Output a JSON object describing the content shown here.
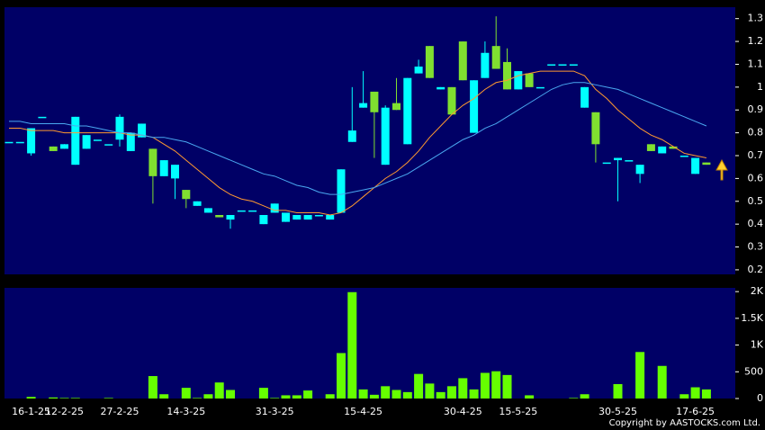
{
  "chart_data": [
    {
      "type": "candlestick",
      "categories": [
        null,
        null,
        "16-1-25",
        null,
        null,
        "12-2-25",
        null,
        null,
        null,
        null,
        "27-2-25",
        null,
        null,
        null,
        null,
        null,
        "14-3-25",
        null,
        null,
        null,
        null,
        null,
        null,
        null,
        "31-3-25",
        null,
        null,
        null,
        null,
        null,
        null,
        null,
        "15-4-25",
        null,
        null,
        null,
        null,
        null,
        null,
        null,
        null,
        "30-4-25",
        null,
        null,
        null,
        null,
        "15-5-25",
        null,
        null,
        null,
        null,
        null,
        null,
        null,
        null,
        "30-5-25",
        null,
        null,
        null,
        null,
        null,
        null,
        "17-6-25",
        null
      ],
      "open": [
        0.76,
        0.76,
        0.82,
        0.87,
        0.72,
        0.75,
        0.87,
        0.79,
        0.77,
        0.75,
        0.87,
        0.8,
        0.84,
        0.61,
        0.68,
        0.66,
        0.51,
        0.5,
        0.47,
        0.43,
        0.44,
        0.46,
        0.46,
        0.44,
        0.49,
        0.45,
        0.44,
        0.44,
        0.44,
        0.44,
        0.64,
        0.81,
        0.93,
        0.89,
        0.91,
        0.9,
        1.04,
        1.09,
        1.04,
        1.0,
        0.88,
        1.03,
        1.03,
        1.15,
        1.08,
        0.99,
        1.07,
        1.0,
        1.0,
        1.1,
        1.1,
        1.1,
        1.0,
        0.75,
        0.67,
        0.69,
        0.68,
        0.66,
        0.72,
        0.74,
        0.73,
        0.7,
        0.69,
        0.66
      ],
      "high": [
        0.76,
        0.76,
        0.82,
        0.87,
        0.74,
        0.75,
        0.87,
        0.79,
        0.77,
        0.75,
        0.88,
        0.8,
        0.84,
        0.73,
        0.68,
        0.66,
        0.55,
        0.5,
        0.47,
        0.44,
        0.44,
        0.46,
        0.46,
        0.44,
        0.49,
        0.45,
        0.44,
        0.44,
        0.44,
        0.44,
        0.64,
        1.0,
        1.07,
        0.98,
        0.92,
        1.04,
        1.04,
        1.12,
        1.18,
        1.0,
        1.0,
        1.2,
        1.03,
        1.2,
        1.31,
        1.17,
        1.07,
        1.06,
        1.0,
        1.1,
        1.1,
        1.1,
        1.0,
        0.89,
        0.67,
        0.69,
        0.68,
        0.66,
        0.75,
        0.74,
        0.74,
        0.7,
        0.69,
        0.67
      ],
      "low": [
        0.76,
        0.76,
        0.7,
        0.87,
        0.72,
        0.73,
        0.66,
        0.73,
        0.77,
        0.75,
        0.74,
        0.72,
        0.78,
        0.49,
        0.61,
        0.51,
        0.47,
        0.48,
        0.45,
        0.43,
        0.38,
        0.46,
        0.46,
        0.4,
        0.45,
        0.41,
        0.42,
        0.42,
        0.44,
        0.42,
        0.45,
        0.76,
        0.91,
        0.69,
        0.66,
        0.9,
        0.75,
        1.06,
        1.04,
        0.99,
        0.88,
        1.03,
        0.8,
        1.04,
        1.08,
        0.99,
        0.99,
        1.0,
        1.0,
        1.1,
        1.1,
        1.1,
        0.91,
        0.67,
        0.67,
        0.5,
        0.68,
        0.58,
        0.72,
        0.71,
        0.73,
        0.7,
        0.62,
        0.66
      ],
      "close": [
        0.76,
        0.76,
        0.71,
        0.87,
        0.74,
        0.73,
        0.66,
        0.73,
        0.77,
        0.75,
        0.77,
        0.72,
        0.78,
        0.73,
        0.61,
        0.6,
        0.55,
        0.48,
        0.45,
        0.44,
        0.42,
        0.46,
        0.46,
        0.4,
        0.45,
        0.41,
        0.42,
        0.42,
        0.44,
        0.42,
        0.45,
        0.76,
        0.91,
        0.98,
        0.66,
        0.93,
        0.75,
        1.06,
        1.18,
        0.99,
        1.0,
        1.2,
        0.8,
        1.04,
        1.18,
        1.11,
        0.99,
        1.06,
        1.0,
        1.1,
        1.1,
        1.1,
        0.91,
        0.89,
        0.67,
        0.68,
        0.68,
        0.62,
        0.75,
        0.71,
        0.74,
        0.7,
        0.62,
        0.67
      ],
      "up_color": "#80e030",
      "down_color": "#00ffff",
      "series": [
        {
          "color": "#ff9a30",
          "values": [
            0.82,
            0.82,
            0.81,
            0.81,
            0.81,
            0.8,
            0.8,
            0.8,
            0.8,
            0.8,
            0.8,
            0.79,
            0.79,
            0.78,
            0.75,
            0.72,
            0.68,
            0.64,
            0.6,
            0.56,
            0.53,
            0.51,
            0.5,
            0.48,
            0.46,
            0.46,
            0.45,
            0.45,
            0.45,
            0.44,
            0.45,
            0.48,
            0.52,
            0.56,
            0.6,
            0.63,
            0.67,
            0.72,
            0.78,
            0.83,
            0.88,
            0.92,
            0.95,
            0.99,
            1.02,
            1.03,
            1.05,
            1.06,
            1.07,
            1.07,
            1.07,
            1.07,
            1.05,
            0.99,
            0.95,
            0.9,
            0.86,
            0.82,
            0.79,
            0.77,
            0.74,
            0.71,
            0.7,
            0.69
          ]
        },
        {
          "color": "#4aa8f0",
          "values": [
            0.85,
            0.85,
            0.84,
            0.84,
            0.84,
            0.84,
            0.83,
            0.83,
            0.82,
            0.81,
            0.8,
            0.8,
            0.79,
            0.78,
            0.78,
            0.77,
            0.76,
            0.74,
            0.72,
            0.7,
            0.68,
            0.66,
            0.64,
            0.62,
            0.61,
            0.59,
            0.57,
            0.56,
            0.54,
            0.53,
            0.53,
            0.54,
            0.55,
            0.56,
            0.58,
            0.6,
            0.62,
            0.65,
            0.68,
            0.71,
            0.74,
            0.77,
            0.79,
            0.82,
            0.84,
            0.87,
            0.9,
            0.93,
            0.96,
            0.99,
            1.01,
            1.02,
            1.02,
            1.01,
            1.0,
            0.99,
            0.97,
            0.95,
            0.93,
            0.91,
            0.89,
            0.87,
            0.85,
            0.83
          ]
        }
      ],
      "ylim": [
        0.18,
        1.35
      ],
      "yticks": [
        0.2,
        0.3,
        0.4,
        0.5,
        0.6,
        0.7,
        0.8,
        0.9,
        1,
        1.1,
        1.2,
        1.3
      ]
    },
    {
      "type": "bar",
      "values": [
        0,
        0,
        30,
        0,
        20,
        10,
        10,
        0,
        0,
        10,
        0,
        0,
        0,
        420,
        80,
        0,
        200,
        10,
        80,
        300,
        160,
        0,
        0,
        200,
        10,
        60,
        60,
        150,
        0,
        80,
        850,
        1990,
        170,
        70,
        230,
        160,
        120,
        460,
        280,
        120,
        230,
        380,
        170,
        480,
        510,
        440,
        0,
        60,
        0,
        0,
        0,
        10,
        80,
        0,
        0,
        270,
        0,
        870,
        0,
        610,
        0,
        80,
        210,
        170
      ],
      "color": "#66ff00",
      "ylim": [
        0,
        2070
      ],
      "yticks": [
        0,
        500,
        {
          "value": 1000,
          "label": "1K"
        },
        {
          "value": 1500,
          "label": "1.5K"
        },
        {
          "value": 2000,
          "label": "2K"
        }
      ]
    }
  ],
  "copyright": "Copyright by AASTOCKS.com Ltd."
}
